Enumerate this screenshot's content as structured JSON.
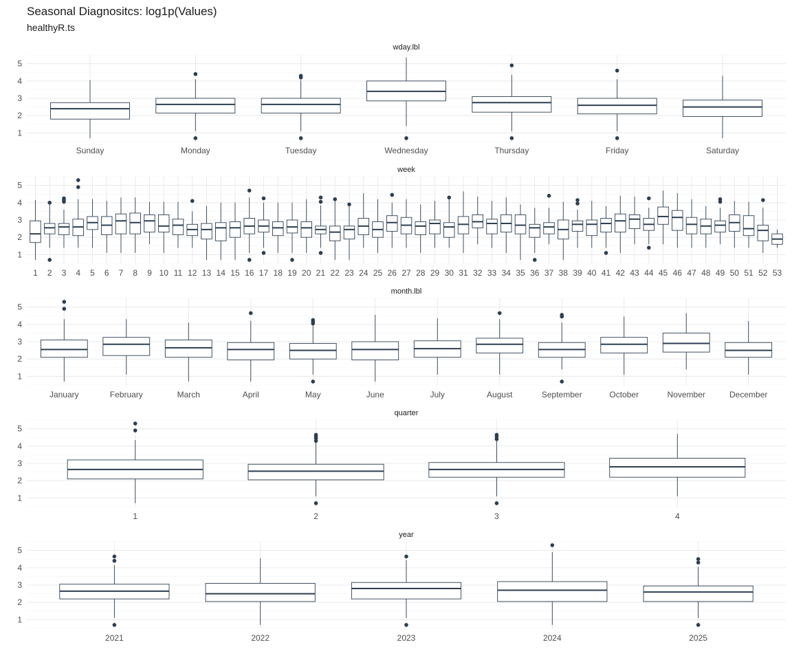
{
  "title": "Seasonal Diagnositcs: log1p(Values)",
  "subtitle": "healthyR.ts",
  "colors": {
    "box_line": "#2c3e50",
    "grid": "#ebebeb",
    "background": "#ffffff"
  },
  "chart_data": {
    "type": "boxplot",
    "layout": "5 stacked facets, shared y axis",
    "ylim": [
      0.5,
      5.5
    ],
    "y_ticks": [
      1,
      2,
      3,
      4,
      5
    ],
    "grid": true,
    "facets": [
      {
        "label": "wday.lbl",
        "categories": [
          "Sunday",
          "Monday",
          "Tuesday",
          "Wednesday",
          "Thursday",
          "Friday",
          "Saturday"
        ],
        "boxes": [
          {
            "low": 0.7,
            "q1": 1.8,
            "median": 2.4,
            "q3": 2.75,
            "high": 4.05,
            "outliers": []
          },
          {
            "low": 1.1,
            "q1": 2.15,
            "median": 2.65,
            "q3": 3.0,
            "high": 4.1,
            "outliers": [
              4.4,
              0.7
            ]
          },
          {
            "low": 1.1,
            "q1": 2.15,
            "median": 2.65,
            "q3": 3.0,
            "high": 4.05,
            "outliers": [
              4.3,
              4.2,
              0.7
            ]
          },
          {
            "low": 1.4,
            "q1": 2.85,
            "median": 3.4,
            "q3": 4.0,
            "high": 5.35,
            "outliers": [
              0.7
            ]
          },
          {
            "low": 1.1,
            "q1": 2.2,
            "median": 2.75,
            "q3": 3.1,
            "high": 4.35,
            "outliers": [
              4.9,
              0.7
            ]
          },
          {
            "low": 1.1,
            "q1": 2.1,
            "median": 2.6,
            "q3": 3.0,
            "high": 4.1,
            "outliers": [
              4.6,
              0.7
            ]
          },
          {
            "low": 0.7,
            "q1": 1.95,
            "median": 2.5,
            "q3": 2.9,
            "high": 4.3,
            "outliers": []
          }
        ]
      },
      {
        "label": "week",
        "categories": [
          "1",
          "2",
          "3",
          "4",
          "5",
          "6",
          "7",
          "8",
          "9",
          "10",
          "11",
          "12",
          "13",
          "14",
          "15",
          "16",
          "17",
          "18",
          "19",
          "20",
          "21",
          "22",
          "23",
          "24",
          "25",
          "26",
          "27",
          "28",
          "29",
          "30",
          "31",
          "32",
          "33",
          "34",
          "35",
          "36",
          "37",
          "38",
          "39",
          "40",
          "41",
          "42",
          "43",
          "44",
          "45",
          "46",
          "47",
          "48",
          "49",
          "50",
          "51",
          "52",
          "53"
        ],
        "boxes": [
          {
            "low": 0.7,
            "q1": 1.7,
            "median": 2.2,
            "q3": 2.95,
            "high": 4.15,
            "outliers": []
          },
          {
            "low": 1.4,
            "q1": 2.2,
            "median": 2.55,
            "q3": 2.8,
            "high": 3.9,
            "outliers": [
              4.0,
              0.7
            ]
          },
          {
            "low": 1.4,
            "q1": 2.15,
            "median": 2.6,
            "q3": 2.8,
            "high": 3.6,
            "outliers": [
              4.25,
              4.15,
              4.05
            ]
          },
          {
            "low": 1.4,
            "q1": 2.1,
            "median": 2.6,
            "q3": 3.05,
            "high": 4.2,
            "outliers": [
              5.3,
              4.9
            ]
          },
          {
            "low": 1.4,
            "q1": 2.45,
            "median": 2.85,
            "q3": 3.2,
            "high": 4.2,
            "outliers": []
          },
          {
            "low": 1.1,
            "q1": 2.15,
            "median": 2.7,
            "q3": 3.2,
            "high": 4.1,
            "outliers": []
          },
          {
            "low": 1.1,
            "q1": 2.2,
            "median": 2.95,
            "q3": 3.35,
            "high": 4.3,
            "outliers": []
          },
          {
            "low": 1.1,
            "q1": 2.2,
            "median": 2.85,
            "q3": 3.4,
            "high": 4.3,
            "outliers": []
          },
          {
            "low": 1.6,
            "q1": 2.3,
            "median": 2.95,
            "q3": 3.3,
            "high": 4.05,
            "outliers": []
          },
          {
            "low": 1.1,
            "q1": 2.3,
            "median": 2.65,
            "q3": 3.3,
            "high": 4.05,
            "outliers": []
          },
          {
            "low": 1.4,
            "q1": 2.15,
            "median": 2.7,
            "q3": 3.05,
            "high": 4.05,
            "outliers": []
          },
          {
            "low": 1.4,
            "q1": 2.1,
            "median": 2.45,
            "q3": 2.75,
            "high": 3.5,
            "outliers": [
              4.1
            ]
          },
          {
            "low": 0.7,
            "q1": 1.9,
            "median": 2.45,
            "q3": 2.8,
            "high": 3.8,
            "outliers": []
          },
          {
            "low": 0.7,
            "q1": 1.8,
            "median": 2.55,
            "q3": 2.85,
            "high": 4.0,
            "outliers": []
          },
          {
            "low": 0.7,
            "q1": 2.0,
            "median": 2.55,
            "q3": 2.9,
            "high": 4.0,
            "outliers": []
          },
          {
            "low": 1.1,
            "q1": 2.2,
            "median": 2.65,
            "q3": 3.1,
            "high": 4.3,
            "outliers": [
              4.7,
              0.7
            ]
          },
          {
            "low": 1.4,
            "q1": 2.3,
            "median": 2.65,
            "q3": 3.0,
            "high": 4.0,
            "outliers": [
              4.25,
              1.1
            ]
          },
          {
            "low": 1.1,
            "q1": 2.1,
            "median": 2.55,
            "q3": 2.9,
            "high": 4.0,
            "outliers": []
          },
          {
            "low": 1.1,
            "q1": 2.25,
            "median": 2.6,
            "q3": 3.0,
            "high": 4.0,
            "outliers": [
              0.7
            ]
          },
          {
            "low": 1.1,
            "q1": 2.0,
            "median": 2.55,
            "q3": 2.9,
            "high": 4.2,
            "outliers": []
          },
          {
            "low": 1.4,
            "q1": 2.2,
            "median": 2.45,
            "q3": 2.65,
            "high": 3.85,
            "outliers": [
              4.3,
              4.05,
              1.1
            ]
          },
          {
            "low": 0.7,
            "q1": 1.8,
            "median": 2.3,
            "q3": 2.65,
            "high": 4.15,
            "outliers": [
              4.2
            ]
          },
          {
            "low": 0.7,
            "q1": 1.9,
            "median": 2.45,
            "q3": 2.65,
            "high": 3.8,
            "outliers": [
              3.9
            ]
          },
          {
            "low": 1.4,
            "q1": 2.15,
            "median": 2.65,
            "q3": 3.1,
            "high": 4.55,
            "outliers": []
          },
          {
            "low": 1.1,
            "q1": 2.0,
            "median": 2.45,
            "q3": 2.9,
            "high": 4.2,
            "outliers": []
          },
          {
            "low": 1.4,
            "q1": 2.35,
            "median": 2.85,
            "q3": 3.25,
            "high": 4.0,
            "outliers": [
              4.45
            ]
          },
          {
            "low": 1.4,
            "q1": 2.2,
            "median": 2.7,
            "q3": 3.15,
            "high": 4.2,
            "outliers": []
          },
          {
            "low": 1.1,
            "q1": 2.15,
            "median": 2.65,
            "q3": 2.9,
            "high": 3.9,
            "outliers": []
          },
          {
            "low": 1.4,
            "q1": 2.2,
            "median": 2.8,
            "q3": 3.0,
            "high": 4.1,
            "outliers": []
          },
          {
            "low": 1.4,
            "q1": 2.0,
            "median": 2.6,
            "q3": 2.85,
            "high": 4.2,
            "outliers": [
              4.3
            ]
          },
          {
            "low": 1.1,
            "q1": 2.2,
            "median": 2.75,
            "q3": 3.2,
            "high": 4.65,
            "outliers": []
          },
          {
            "low": 1.6,
            "q1": 2.55,
            "median": 2.9,
            "q3": 3.3,
            "high": 4.35,
            "outliers": []
          },
          {
            "low": 1.4,
            "q1": 2.2,
            "median": 2.8,
            "q3": 3.05,
            "high": 4.1,
            "outliers": []
          },
          {
            "low": 1.1,
            "q1": 2.3,
            "median": 2.8,
            "q3": 3.3,
            "high": 4.3,
            "outliers": []
          },
          {
            "low": 0.7,
            "q1": 2.2,
            "median": 2.7,
            "q3": 3.3,
            "high": 3.9,
            "outliers": []
          },
          {
            "low": 1.1,
            "q1": 2.0,
            "median": 2.55,
            "q3": 2.75,
            "high": 3.7,
            "outliers": [
              0.7
            ]
          },
          {
            "low": 1.6,
            "q1": 2.2,
            "median": 2.6,
            "q3": 2.85,
            "high": 3.7,
            "outliers": [
              4.4
            ]
          },
          {
            "low": 0.7,
            "q1": 1.9,
            "median": 2.45,
            "q3": 3.0,
            "high": 4.05,
            "outliers": []
          },
          {
            "low": 1.4,
            "q1": 2.35,
            "median": 2.75,
            "q3": 2.95,
            "high": 3.6,
            "outliers": [
              4.15,
              3.95
            ]
          },
          {
            "low": 1.4,
            "q1": 2.1,
            "median": 2.75,
            "q3": 3.0,
            "high": 4.1,
            "outliers": []
          },
          {
            "low": 1.4,
            "q1": 2.3,
            "median": 2.8,
            "q3": 3.1,
            "high": 3.8,
            "outliers": [
              1.1
            ]
          },
          {
            "low": 1.1,
            "q1": 2.3,
            "median": 2.95,
            "q3": 3.35,
            "high": 4.4,
            "outliers": []
          },
          {
            "low": 1.6,
            "q1": 2.5,
            "median": 3.05,
            "q3": 3.3,
            "high": 4.35,
            "outliers": []
          },
          {
            "low": 1.6,
            "q1": 2.4,
            "median": 2.75,
            "q3": 3.1,
            "high": 3.7,
            "outliers": [
              4.25,
              1.4
            ]
          },
          {
            "low": 1.6,
            "q1": 2.75,
            "median": 3.2,
            "q3": 3.75,
            "high": 4.7,
            "outliers": []
          },
          {
            "low": 1.4,
            "q1": 2.4,
            "median": 3.15,
            "q3": 3.55,
            "high": 4.55,
            "outliers": []
          },
          {
            "low": 1.4,
            "q1": 2.2,
            "median": 2.75,
            "q3": 3.15,
            "high": 4.2,
            "outliers": []
          },
          {
            "low": 1.4,
            "q1": 2.2,
            "median": 2.65,
            "q3": 3.05,
            "high": 3.8,
            "outliers": []
          },
          {
            "low": 1.6,
            "q1": 2.3,
            "median": 2.7,
            "q3": 2.95,
            "high": 3.7,
            "outliers": [
              4.2,
              4.05
            ]
          },
          {
            "low": 1.4,
            "q1": 2.35,
            "median": 2.85,
            "q3": 3.3,
            "high": 4.1,
            "outliers": []
          },
          {
            "low": 1.4,
            "q1": 2.1,
            "median": 2.5,
            "q3": 3.25,
            "high": 4.05,
            "outliers": []
          },
          {
            "low": 1.1,
            "q1": 1.8,
            "median": 2.4,
            "q3": 2.7,
            "high": 3.7,
            "outliers": [
              4.15
            ]
          },
          {
            "low": 1.4,
            "q1": 1.6,
            "median": 1.9,
            "q3": 2.2,
            "high": 2.45,
            "outliers": []
          }
        ]
      },
      {
        "label": "month.lbl",
        "categories": [
          "January",
          "February",
          "March",
          "April",
          "May",
          "June",
          "July",
          "August",
          "September",
          "October",
          "November",
          "December"
        ],
        "boxes": [
          {
            "low": 0.7,
            "q1": 2.1,
            "median": 2.55,
            "q3": 3.1,
            "high": 4.3,
            "outliers": [
              5.3,
              4.9
            ]
          },
          {
            "low": 1.1,
            "q1": 2.2,
            "median": 2.85,
            "q3": 3.25,
            "high": 4.3,
            "outliers": []
          },
          {
            "low": 0.7,
            "q1": 2.1,
            "median": 2.65,
            "q3": 3.1,
            "high": 4.1,
            "outliers": []
          },
          {
            "low": 0.7,
            "q1": 1.95,
            "median": 2.55,
            "q3": 2.95,
            "high": 4.2,
            "outliers": [
              4.65
            ]
          },
          {
            "low": 1.1,
            "q1": 2.0,
            "median": 2.5,
            "q3": 2.9,
            "high": 4.0,
            "outliers": [
              4.25,
              4.15,
              4.05,
              0.7
            ]
          },
          {
            "low": 0.7,
            "q1": 1.95,
            "median": 2.55,
            "q3": 3.0,
            "high": 4.55,
            "outliers": []
          },
          {
            "low": 1.1,
            "q1": 2.1,
            "median": 2.6,
            "q3": 3.05,
            "high": 4.35,
            "outliers": []
          },
          {
            "low": 1.1,
            "q1": 2.35,
            "median": 2.85,
            "q3": 3.2,
            "high": 4.3,
            "outliers": [
              4.65
            ]
          },
          {
            "low": 1.4,
            "q1": 2.1,
            "median": 2.55,
            "q3": 2.95,
            "high": 4.1,
            "outliers": [
              4.55,
              4.45,
              0.7
            ]
          },
          {
            "low": 1.1,
            "q1": 2.35,
            "median": 2.85,
            "q3": 3.25,
            "high": 4.45,
            "outliers": []
          },
          {
            "low": 1.4,
            "q1": 2.4,
            "median": 2.9,
            "q3": 3.5,
            "high": 4.65,
            "outliers": []
          },
          {
            "low": 1.1,
            "q1": 2.1,
            "median": 2.5,
            "q3": 2.95,
            "high": 4.2,
            "outliers": []
          }
        ]
      },
      {
        "label": "quarter",
        "categories": [
          "1",
          "2",
          "3",
          "4"
        ],
        "boxes": [
          {
            "low": 0.7,
            "q1": 2.1,
            "median": 2.65,
            "q3": 3.2,
            "high": 4.35,
            "outliers": [
              5.3,
              4.9
            ]
          },
          {
            "low": 1.1,
            "q1": 2.05,
            "median": 2.55,
            "q3": 2.95,
            "high": 4.25,
            "outliers": [
              4.65,
              4.55,
              4.45,
              4.3,
              0.7
            ]
          },
          {
            "low": 1.1,
            "q1": 2.2,
            "median": 2.65,
            "q3": 3.05,
            "high": 4.3,
            "outliers": [
              4.65,
              4.55,
              4.4,
              0.7
            ]
          },
          {
            "low": 1.1,
            "q1": 2.2,
            "median": 2.8,
            "q3": 3.3,
            "high": 4.7,
            "outliers": []
          }
        ]
      },
      {
        "label": "year",
        "categories": [
          "2021",
          "2022",
          "2023",
          "2024",
          "2025"
        ],
        "boxes": [
          {
            "low": 1.1,
            "q1": 2.2,
            "median": 2.65,
            "q3": 3.05,
            "high": 4.15,
            "outliers": [
              4.65,
              4.4,
              0.7
            ]
          },
          {
            "low": 0.7,
            "q1": 2.05,
            "median": 2.5,
            "q3": 3.1,
            "high": 4.55,
            "outliers": []
          },
          {
            "low": 1.1,
            "q1": 2.2,
            "median": 2.8,
            "q3": 3.15,
            "high": 4.45,
            "outliers": [
              4.65,
              0.7
            ]
          },
          {
            "low": 0.7,
            "q1": 2.05,
            "median": 2.7,
            "q3": 3.2,
            "high": 4.9,
            "outliers": [
              5.3
            ]
          },
          {
            "low": 1.1,
            "q1": 2.05,
            "median": 2.6,
            "q3": 2.95,
            "high": 4.05,
            "outliers": [
              4.5,
              4.3,
              0.7
            ]
          }
        ]
      }
    ]
  }
}
